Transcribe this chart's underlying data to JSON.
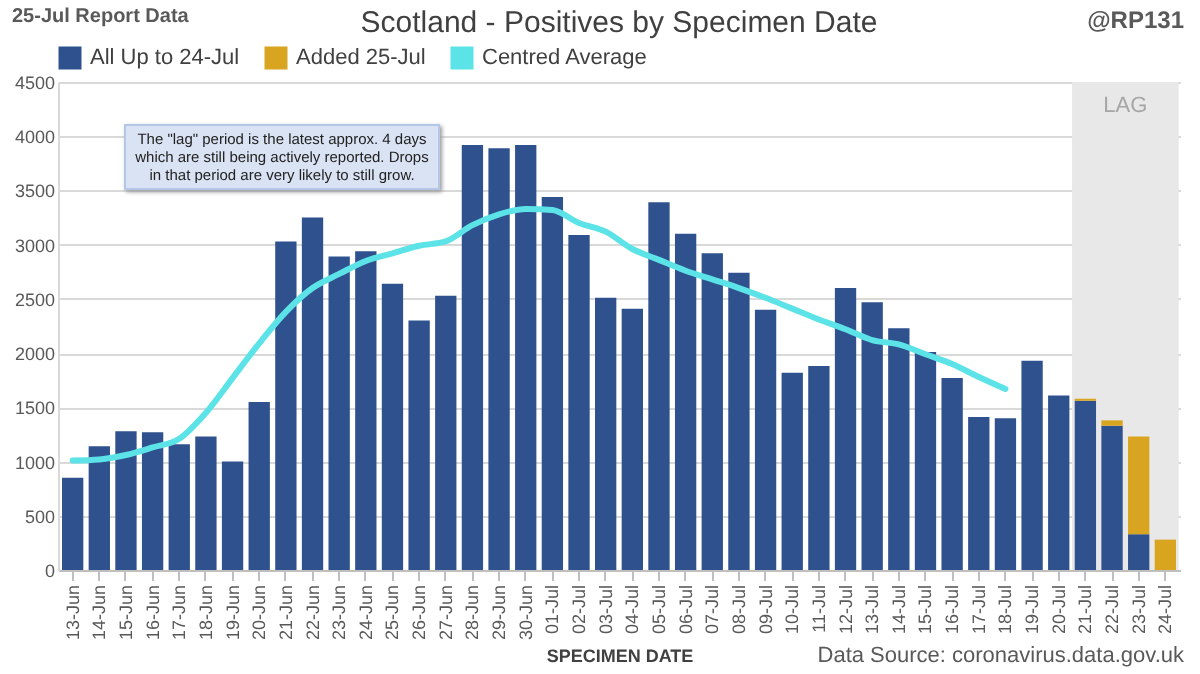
{
  "chart_data": {
    "type": "bar",
    "title": "Scotland - Positives by Specimen Date",
    "xlabel": "SPECIMEN DATE",
    "stacked": true,
    "grid": "y",
    "legend": "top",
    "categories": [
      "13-Jun",
      "14-Jun",
      "15-Jun",
      "16-Jun",
      "17-Jun",
      "18-Jun",
      "19-Jun",
      "20-Jun",
      "21-Jun",
      "22-Jun",
      "23-Jun",
      "24-Jun",
      "25-Jun",
      "26-Jun",
      "27-Jun",
      "28-Jun",
      "29-Jun",
      "30-Jun",
      "01-Jul",
      "02-Jul",
      "03-Jul",
      "04-Jul",
      "05-Jul",
      "06-Jul",
      "07-Jul",
      "08-Jul",
      "09-Jul",
      "10-Jul",
      "11-Jul",
      "12-Jul",
      "13-Jul",
      "14-Jul",
      "15-Jul",
      "16-Jul",
      "17-Jul",
      "18-Jul",
      "19-Jul",
      "20-Jul",
      "21-Jul",
      "22-Jul",
      "23-Jul",
      "24-Jul"
    ],
    "series": [
      {
        "name": "All Up to 24-Jul",
        "color": "#2f528f",
        "values": [
          850,
          1140,
          1280,
          1270,
          1160,
          1230,
          1000,
          1550,
          3030,
          3250,
          2890,
          2940,
          2640,
          2300,
          2530,
          3920,
          3890,
          3920,
          3440,
          3090,
          2510,
          2410,
          3390,
          3100,
          2920,
          2740,
          2400,
          1820,
          1880,
          2600,
          2470,
          2230,
          2010,
          1770,
          1410,
          1400,
          1930,
          1610,
          1560,
          1330,
          330,
          null
        ]
      },
      {
        "name": "Added 25-Jul",
        "color": "#d9a520",
        "values": [
          null,
          null,
          null,
          null,
          null,
          null,
          null,
          null,
          null,
          null,
          null,
          null,
          null,
          null,
          null,
          null,
          null,
          null,
          null,
          null,
          null,
          null,
          null,
          null,
          null,
          null,
          null,
          null,
          null,
          null,
          null,
          null,
          null,
          null,
          null,
          null,
          null,
          null,
          20,
          50,
          900,
          280
        ]
      },
      {
        "name": "Centred Average",
        "type": "line",
        "color": "#5ce3e8",
        "values": [
          1010,
          1020,
          1060,
          1130,
          1210,
          1450,
          1770,
          2090,
          2380,
          2600,
          2730,
          2850,
          2920,
          2990,
          3030,
          3180,
          3280,
          3330,
          3320,
          3200,
          3120,
          2960,
          2860,
          2760,
          2680,
          2600,
          2510,
          2410,
          2310,
          2220,
          2120,
          2080,
          1990,
          1900,
          1780,
          1670,
          null,
          null,
          null,
          null,
          null,
          null
        ]
      }
    ],
    "ylim": [
      0,
      4500
    ],
    "yticks": [
      0,
      500,
      1000,
      1500,
      2000,
      2500,
      3000,
      3500,
      4000,
      4500
    ],
    "bands": [
      {
        "axis": "x",
        "from": "21-Jul",
        "to": "24-Jul",
        "label": "LAG",
        "color": "#e8e8e8"
      }
    ],
    "annotations": [
      "25-Jul Report Data",
      "@RP131",
      "The \"lag\" period is the latest approx. 4 days which are still being actively reported.  Drops in that period are very likely to still grow.",
      "Data Source: coronavirus.data.gov.uk"
    ]
  }
}
